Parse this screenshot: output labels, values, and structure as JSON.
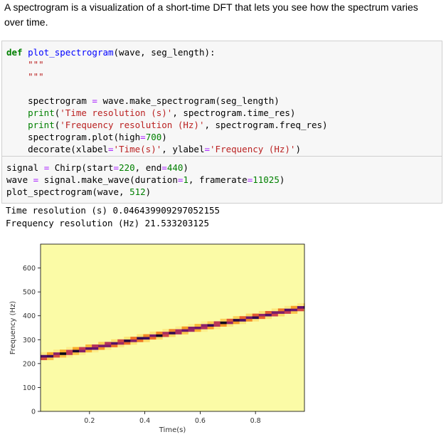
{
  "markdown": {
    "text": "A spectrogram is a visualization of a short-time DFT that lets you see how the spectrum varies over time."
  },
  "cell1": {
    "lines": [
      "def plot_spectrogram(wave, seg_length):",
      "    \"\"\"",
      "    \"\"\"",
      "",
      "    spectrogram = wave.make_spectrogram(seg_length)",
      "    print('Time resolution (s)', spectrogram.time_res)",
      "    print('Frequency resolution (Hz)', spectrogram.freq_res)",
      "    spectrogram.plot(high=700)",
      "    decorate(xlabel='Time(s)', ylabel='Frequency (Hz)')"
    ]
  },
  "cell2": {
    "lines": [
      "signal = Chirp(start=220, end=440)",
      "wave = signal.make_wave(duration=1, framerate=11025)",
      "plot_spectrogram(wave, 512)"
    ]
  },
  "output": {
    "line1": "Time resolution (s) 0.046439909297052155",
    "line2": "Frequency resolution (Hz) 21.533203125"
  },
  "chart_data": {
    "type": "heatmap",
    "xlabel": "Time(s)",
    "ylabel": "Frequency (Hz)",
    "xlim": [
      0.023,
      0.977
    ],
    "ylim": [
      0,
      700
    ],
    "xticks": [
      0.2,
      0.4,
      0.6,
      0.8
    ],
    "yticks": [
      0,
      100,
      200,
      300,
      400,
      500,
      600
    ],
    "time_step": 0.0232,
    "freq_step": 10.77,
    "ridge": {
      "start_hz": 220,
      "end_hz": 440
    },
    "colormap": "inferno",
    "background_color": "#fbfba6"
  }
}
